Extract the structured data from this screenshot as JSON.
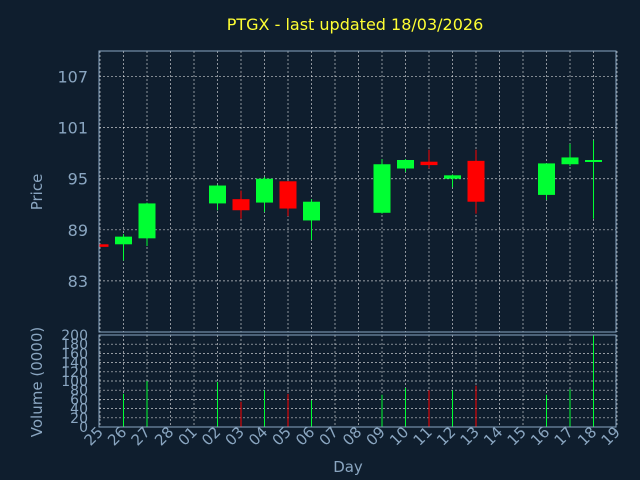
{
  "chart_data": {
    "type": "candlestick",
    "title": "PTGX - last updated 18/03/2026",
    "xlabel": "Day",
    "x_ticks": [
      "25",
      "26",
      "27",
      "28",
      "01",
      "02",
      "03",
      "04",
      "05",
      "06",
      "07",
      "08",
      "09",
      "10",
      "11",
      "12",
      "13",
      "14",
      "15",
      "16",
      "17",
      "18",
      "19"
    ],
    "price_panel": {
      "ylabel": "Price",
      "ylim": [
        77,
        110
      ],
      "yticks": [
        83,
        89,
        95,
        101,
        107
      ],
      "grid": true,
      "candles": [
        {
          "day": "25",
          "open": 87.3,
          "high": 87.3,
          "low": 87.0,
          "close": 87.0
        },
        {
          "day": "26",
          "open": 87.3,
          "high": 88.5,
          "low": 85.4,
          "close": 88.2
        },
        {
          "day": "27",
          "open": 88.0,
          "high": 92.2,
          "low": 87.1,
          "close": 92.1
        },
        {
          "day": "02",
          "open": 92.1,
          "high": 94.3,
          "low": 91.3,
          "close": 94.2
        },
        {
          "day": "03",
          "open": 92.6,
          "high": 93.6,
          "low": 90.3,
          "close": 91.3
        },
        {
          "day": "04",
          "open": 92.2,
          "high": 95.2,
          "low": 91.1,
          "close": 95.0
        },
        {
          "day": "05",
          "open": 94.7,
          "high": 94.7,
          "low": 90.6,
          "close": 91.5
        },
        {
          "day": "06",
          "open": 90.1,
          "high": 92.6,
          "low": 87.8,
          "close": 92.3
        },
        {
          "day": "09",
          "open": 91.0,
          "high": 97.3,
          "low": 90.9,
          "close": 96.7
        },
        {
          "day": "10",
          "open": 96.2,
          "high": 97.3,
          "low": 95.8,
          "close": 97.2
        },
        {
          "day": "11",
          "open": 97.0,
          "high": 98.4,
          "low": 96.2,
          "close": 96.6
        },
        {
          "day": "12",
          "open": 95.0,
          "high": 95.5,
          "low": 94.0,
          "close": 95.4
        },
        {
          "day": "13",
          "open": 97.1,
          "high": 98.4,
          "low": 90.9,
          "close": 92.3
        },
        {
          "day": "16",
          "open": 93.1,
          "high": 96.8,
          "low": 92.5,
          "close": 96.8
        },
        {
          "day": "17",
          "open": 96.7,
          "high": 99.1,
          "low": 96.5,
          "close": 97.5
        },
        {
          "day": "18",
          "open": 97.0,
          "high": 99.5,
          "low": 90.3,
          "close": 97.2
        }
      ]
    },
    "volume_panel": {
      "ylabel": "Volume (0000)",
      "ylim": [
        0,
        200
      ],
      "yticks": [
        0,
        20,
        40,
        60,
        80,
        100,
        120,
        140,
        160,
        180,
        200
      ],
      "grid": true,
      "bars": [
        {
          "day": "26",
          "value": 72,
          "direction": "up"
        },
        {
          "day": "27",
          "value": 100,
          "direction": "up"
        },
        {
          "day": "02",
          "value": 98,
          "direction": "up"
        },
        {
          "day": "03",
          "value": 55,
          "direction": "down"
        },
        {
          "day": "04",
          "value": 80,
          "direction": "up"
        },
        {
          "day": "05",
          "value": 72,
          "direction": "down"
        },
        {
          "day": "06",
          "value": 58,
          "direction": "up"
        },
        {
          "day": "09",
          "value": 70,
          "direction": "up"
        },
        {
          "day": "10",
          "value": 85,
          "direction": "up"
        },
        {
          "day": "11",
          "value": 80,
          "direction": "down"
        },
        {
          "day": "12",
          "value": 80,
          "direction": "up"
        },
        {
          "day": "13",
          "value": 90,
          "direction": "down"
        },
        {
          "day": "16",
          "value": 70,
          "direction": "up"
        },
        {
          "day": "17",
          "value": 82,
          "direction": "up"
        },
        {
          "day": "18",
          "value": 200,
          "direction": "up"
        }
      ]
    },
    "colors": {
      "background": "#0f1e2e",
      "up": "#00ff33",
      "down": "#ff0000",
      "grid": "#ffffff",
      "frame": "#8aa6c1",
      "text": "#8aa6c1",
      "title": "#ffff33"
    }
  }
}
